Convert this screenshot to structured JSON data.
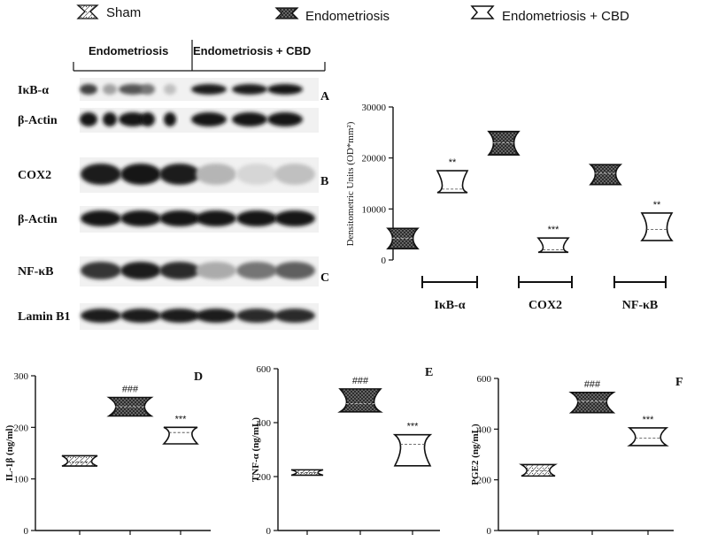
{
  "legend": [
    {
      "label": "Sham",
      "pattern": "sham"
    },
    {
      "label": "Endometriosis",
      "pattern": "endo"
    },
    {
      "label": "Endometriosis + CBD",
      "pattern": "cbd"
    }
  ],
  "blot": {
    "group_labels": [
      "Endometriosis",
      "Endometriosis + CBD"
    ],
    "rows": [
      {
        "label": "IκB-α",
        "panel": "A",
        "intensity": [
          0.8,
          0.35,
          0.7,
          0.55,
          0.2,
          0.95,
          0.95,
          1.0
        ]
      },
      {
        "label": "β-Actin",
        "panel": "",
        "intensity": [
          1,
          1,
          1,
          1,
          1,
          1,
          1,
          1
        ]
      },
      {
        "label": "COX2",
        "panel": "B",
        "intensity": [
          0.95,
          1.0,
          0.95,
          0.25,
          0.1,
          0.2
        ]
      },
      {
        "label": "β-Actin",
        "panel": "",
        "intensity": [
          1,
          1,
          1,
          1,
          1,
          1
        ]
      },
      {
        "label": "NF-κB",
        "panel": "C",
        "intensity": [
          0.85,
          0.95,
          0.9,
          0.3,
          0.55,
          0.65
        ]
      },
      {
        "label": "Lamin B1",
        "panel": "",
        "intensity": [
          0.95,
          0.95,
          0.95,
          0.95,
          0.9,
          0.9
        ]
      }
    ]
  },
  "chart_data": [
    {
      "panel": "A-C",
      "type": "violin",
      "ylabel": "Densitometric Units (OD*mm²)",
      "ylim": [
        0,
        30000
      ],
      "yticks": [
        0,
        10000,
        20000,
        30000
      ],
      "groups": [
        "IκB-α",
        "COX2",
        "NF-κB"
      ],
      "series": [
        {
          "pattern": "endo",
          "group": "IκB-α",
          "min": 2200,
          "max": 6200,
          "median": 4200,
          "sig": ""
        },
        {
          "pattern": "cbd",
          "group": "IκB-α",
          "min": 13200,
          "max": 17500,
          "median": 13900,
          "sig": "**"
        },
        {
          "pattern": "endo",
          "group": "COX2",
          "min": 20600,
          "max": 25200,
          "median": 23000,
          "sig": ""
        },
        {
          "pattern": "cbd",
          "group": "COX2",
          "min": 1500,
          "max": 4300,
          "median": 2000,
          "sig": "***"
        },
        {
          "pattern": "endo",
          "group": "NF-κB",
          "min": 14800,
          "max": 18700,
          "median": 17000,
          "sig": ""
        },
        {
          "pattern": "cbd",
          "group": "NF-κB",
          "min": 3800,
          "max": 9200,
          "median": 6000,
          "sig": "**"
        }
      ]
    },
    {
      "panel": "D",
      "type": "violin",
      "ylabel": "IL-1β (ng/ml)",
      "ylim": [
        0,
        300
      ],
      "yticks": [
        0,
        100,
        200,
        300
      ],
      "series": [
        {
          "pattern": "sham",
          "min": 125,
          "max": 145,
          "median": 133,
          "sig": ""
        },
        {
          "pattern": "endo",
          "min": 222,
          "max": 258,
          "median": 240,
          "sig": "###"
        },
        {
          "pattern": "cbd",
          "min": 168,
          "max": 200,
          "median": 190,
          "sig": "***"
        }
      ]
    },
    {
      "panel": "E",
      "type": "violin",
      "ylabel": "TNF-α (ng/mL)",
      "ylim": [
        0,
        600
      ],
      "yticks": [
        0,
        200,
        400,
        600
      ],
      "series": [
        {
          "pattern": "sham",
          "min": 205,
          "max": 225,
          "median": 215,
          "sig": ""
        },
        {
          "pattern": "endo",
          "min": 440,
          "max": 525,
          "median": 470,
          "sig": "###"
        },
        {
          "pattern": "cbd",
          "min": 240,
          "max": 355,
          "median": 320,
          "sig": "***"
        }
      ]
    },
    {
      "panel": "F",
      "type": "violin",
      "ylabel": "PGE2 (ng/mL)",
      "ylim": [
        0,
        600
      ],
      "yticks": [
        0,
        200,
        400,
        600
      ],
      "series": [
        {
          "pattern": "sham",
          "min": 215,
          "max": 260,
          "median": 235,
          "sig": ""
        },
        {
          "pattern": "endo",
          "min": 465,
          "max": 545,
          "median": 510,
          "sig": "###"
        },
        {
          "pattern": "cbd",
          "min": 335,
          "max": 405,
          "median": 365,
          "sig": "***"
        }
      ]
    }
  ]
}
